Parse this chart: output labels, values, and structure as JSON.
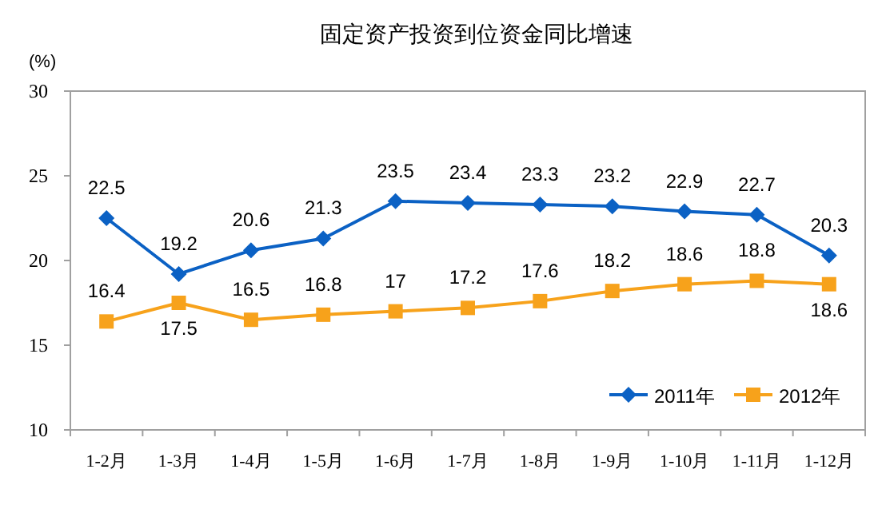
{
  "chart_data": {
    "type": "line",
    "title": "固定资产投资到位资金同比增速",
    "ylabel": "(%)",
    "categories": [
      "1-2月",
      "1-3月",
      "1-4月",
      "1-5月",
      "1-6月",
      "1-7月",
      "1-8月",
      "1-9月",
      "1-10月",
      "1-11月",
      "1-12月"
    ],
    "series": [
      {
        "name": "2011年",
        "color": "#0b61c4",
        "marker": "diamond",
        "values": [
          22.5,
          19.2,
          20.6,
          21.3,
          23.5,
          23.4,
          23.3,
          23.2,
          22.9,
          22.7,
          20.3
        ]
      },
      {
        "name": "2012年",
        "color": "#f7a21b",
        "marker": "square",
        "values": [
          16.4,
          17.5,
          16.5,
          16.8,
          17,
          17.2,
          17.6,
          18.2,
          18.6,
          18.8,
          18.6
        ]
      }
    ],
    "ylim": [
      10,
      30
    ],
    "yticks": [
      10,
      15,
      20,
      25,
      30
    ],
    "grid": false,
    "legend": "bottom right",
    "data_labels": true
  }
}
